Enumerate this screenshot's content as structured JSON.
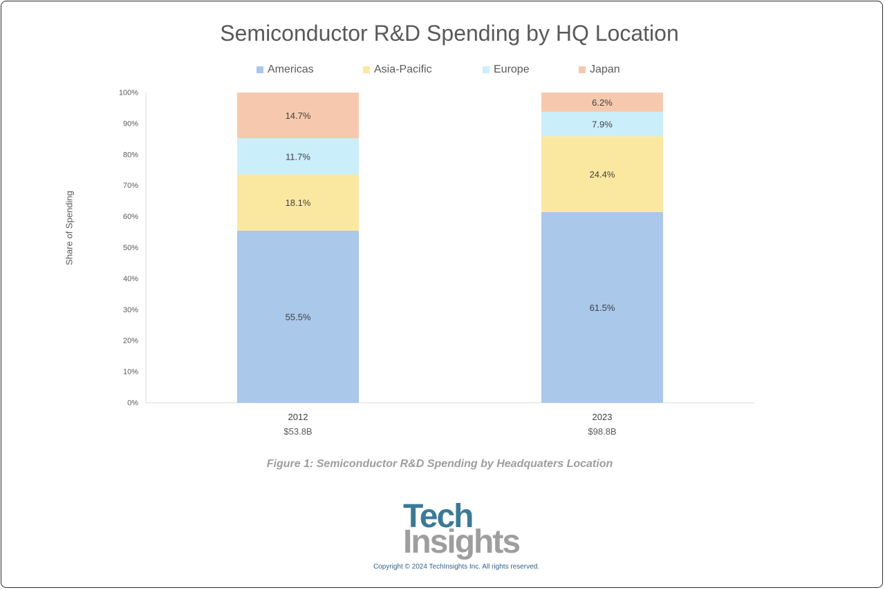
{
  "chart_data": {
    "type": "bar",
    "stacked": true,
    "title": "Semiconductor R&D Spending by HQ Location",
    "xlabel": "",
    "ylabel": "Share of Spending",
    "ylim": [
      0,
      100
    ],
    "yticks": [
      "0%",
      "10%",
      "20%",
      "30%",
      "40%",
      "50%",
      "60%",
      "70%",
      "80%",
      "90%",
      "100%"
    ],
    "categories": [
      "2012",
      "2023"
    ],
    "category_totals": [
      "$53.8B",
      "$98.8B"
    ],
    "legend_position": "top",
    "series": [
      {
        "name": "Americas",
        "color": "#a9c8ea",
        "values": [
          55.5,
          61.5
        ],
        "labels": [
          "55.5%",
          "61.5%"
        ]
      },
      {
        "name": "Asia-Pacific",
        "color": "#fbe8a0",
        "values": [
          18.1,
          24.4
        ],
        "labels": [
          "18.1%",
          "24.4%"
        ]
      },
      {
        "name": "Europe",
        "color": "#cbeefb",
        "values": [
          11.7,
          7.9
        ],
        "labels": [
          "11.7%",
          "7.9%"
        ]
      },
      {
        "name": "Japan",
        "color": "#f6c9ae",
        "values": [
          14.7,
          6.2
        ],
        "labels": [
          "14.7%",
          "6.2%"
        ]
      }
    ]
  },
  "caption": "Figure 1: Semiconductor R&D Spending by Headquaters Location",
  "logo": {
    "line1": "Tech",
    "line2": "Insights"
  },
  "copyright": "Copyright © 2024 TechInsights Inc. All rights reserved."
}
